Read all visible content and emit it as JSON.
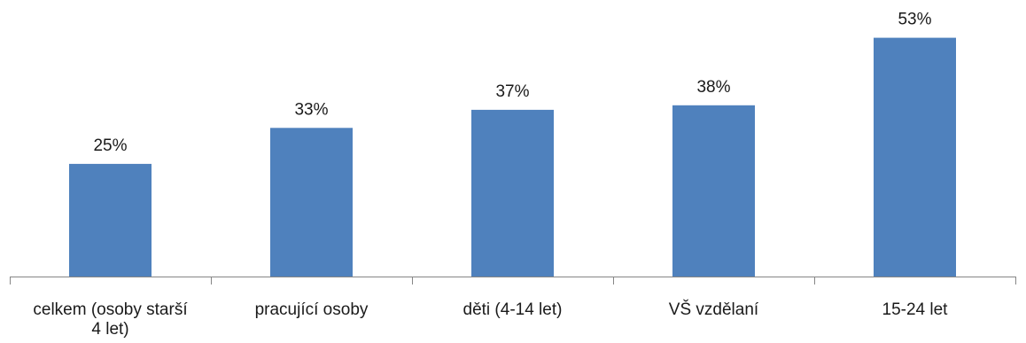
{
  "chart_data": {
    "type": "bar",
    "categories": [
      [
        "celkem (osoby starší",
        "4 let)"
      ],
      [
        "pracující osoby"
      ],
      [
        "děti (4-14 let)"
      ],
      [
        "VŠ vzdělaní"
      ],
      [
        "15-24 let"
      ]
    ],
    "values": [
      25,
      33,
      37,
      38,
      53
    ],
    "value_labels": [
      "25%",
      "33%",
      "37%",
      "38%",
      "53%"
    ],
    "ylim": [
      0,
      60
    ],
    "grid": false,
    "legend": "none",
    "colors": {
      "bar": "#4f81bd",
      "axis": "#868686",
      "text": "#1a1a1a"
    }
  }
}
